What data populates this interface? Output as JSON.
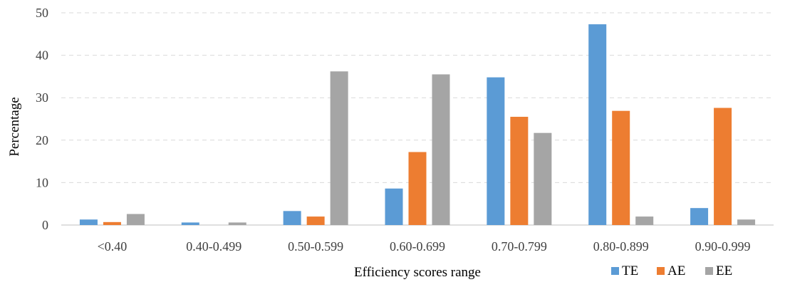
{
  "chart_data": {
    "type": "bar",
    "title": "",
    "xlabel": "Efficiency scores range",
    "ylabel": "Percentage",
    "ylim": [
      0,
      50
    ],
    "yticks": [
      0,
      10,
      20,
      30,
      40,
      50
    ],
    "grid": "horizontal dashed",
    "legend_position": "bottom-right",
    "categories": [
      "<0.40",
      "0.40-0.499",
      "0.50-0.599",
      "0.60-0.699",
      "0.70-0.799",
      "0.80-0.899",
      "0.90-0.999"
    ],
    "series": [
      {
        "name": "TE",
        "color": "#5b9bd5",
        "values": [
          1.3,
          0.6,
          3.3,
          8.6,
          34.8,
          47.3,
          4.0
        ]
      },
      {
        "name": "AE",
        "color": "#ed7d31",
        "values": [
          0.7,
          0.0,
          2.0,
          17.2,
          25.5,
          26.9,
          27.6
        ]
      },
      {
        "name": "EE",
        "color": "#a5a5a5",
        "values": [
          2.6,
          0.6,
          36.2,
          35.5,
          21.7,
          2.0,
          1.3
        ]
      }
    ]
  }
}
